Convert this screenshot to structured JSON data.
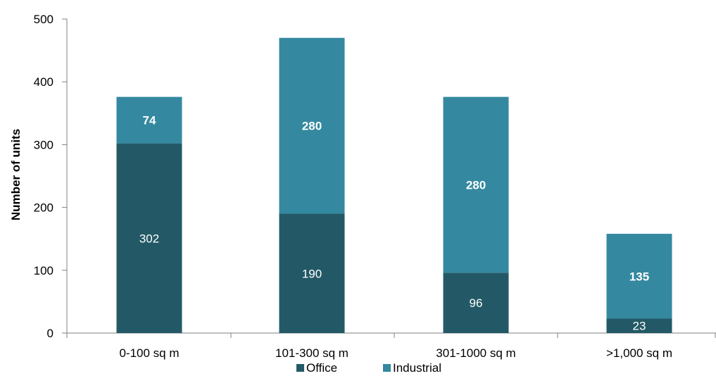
{
  "chart_data": {
    "type": "bar",
    "stacked": true,
    "categories": [
      "0-100 sq m",
      "101-300 sq m",
      "301-1000 sq m",
      ">1,000 sq m"
    ],
    "series": [
      {
        "name": "Office",
        "values": [
          302,
          190,
          96,
          23
        ],
        "color": "#235966"
      },
      {
        "name": "Industrial",
        "values": [
          74,
          280,
          280,
          135
        ],
        "color": "#3489A0"
      }
    ],
    "ylabel": "Number of units",
    "ylim": [
      0,
      500
    ],
    "yticks": [
      0,
      100,
      200,
      300,
      400,
      500
    ],
    "grid": false,
    "legend": "bottom"
  }
}
